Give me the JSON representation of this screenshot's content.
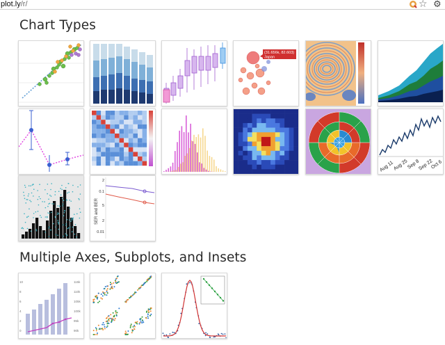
{
  "browser": {
    "url_host": "plot.ly",
    "url_path": "/r/"
  },
  "sections": [
    {
      "title": "Chart Types"
    },
    {
      "title": "Multiple Axes, Subplots, and Insets"
    }
  ],
  "thumbs": {
    "bubble_tooltip": "(31.656k, 82.603)",
    "bubble_tooltip_name": "Japan",
    "timeseries_ticks": [
      "Aug 11",
      "Aug 25",
      "Sep 8",
      "Sep 22",
      "Oct 6"
    ],
    "log_ylabel": "SER and BER",
    "log_ticks": [
      "2",
      "0.1",
      "5",
      "2",
      "0.01"
    ],
    "dual_axis_left": [
      "10",
      "8",
      "6",
      "4",
      "2",
      "0"
    ],
    "dual_axis_right": [
      "115k",
      "110k",
      "105k",
      "100k",
      "95k",
      "90k"
    ]
  },
  "icons": {
    "extension": "extension-icon",
    "star": "star-icon",
    "wrench": "wrench-icon"
  }
}
